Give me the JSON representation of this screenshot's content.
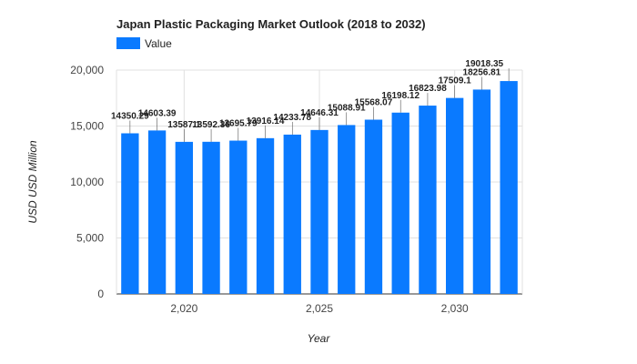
{
  "chart_data": {
    "type": "bar",
    "title": "Japan Plastic Packaging Market Outlook (2018 to 2032)",
    "xlabel": "Year",
    "ylabel": "USD USD Million",
    "x": [
      2018,
      2019,
      2020,
      2021,
      2022,
      2023,
      2024,
      2025,
      2026,
      2027,
      2028,
      2029,
      2030,
      2031,
      2032
    ],
    "series": [
      {
        "name": "Value",
        "values": [
          14350.29,
          14603.39,
          13587.1,
          13592.36,
          13695.79,
          13916.14,
          14233.78,
          14646.31,
          15088.91,
          15568.07,
          16198.12,
          16823.98,
          17509.1,
          18256.81,
          19018.35
        ],
        "labels": [
          "14350.29",
          "14603.39",
          "13587.1",
          "13592.36",
          "13695.79",
          "13916.14",
          "14233.78",
          "14646.31",
          "15088.91",
          "15568.07",
          "16198.12",
          "16823.98",
          "17509.1",
          "18256.81",
          "19018.35"
        ]
      }
    ],
    "ylim": [
      0,
      20000
    ],
    "yticks": [
      0,
      5000,
      10000,
      15000,
      20000
    ],
    "ytick_labels": [
      "0",
      "5,000",
      "10,000",
      "15,000",
      "20,000"
    ],
    "xticks": [
      2020,
      2025,
      2030
    ],
    "xtick_labels": [
      "2,020",
      "2,025",
      "2,030"
    ],
    "grid": true,
    "legend_position": "top-left",
    "bar_color": "#0a7aff"
  }
}
